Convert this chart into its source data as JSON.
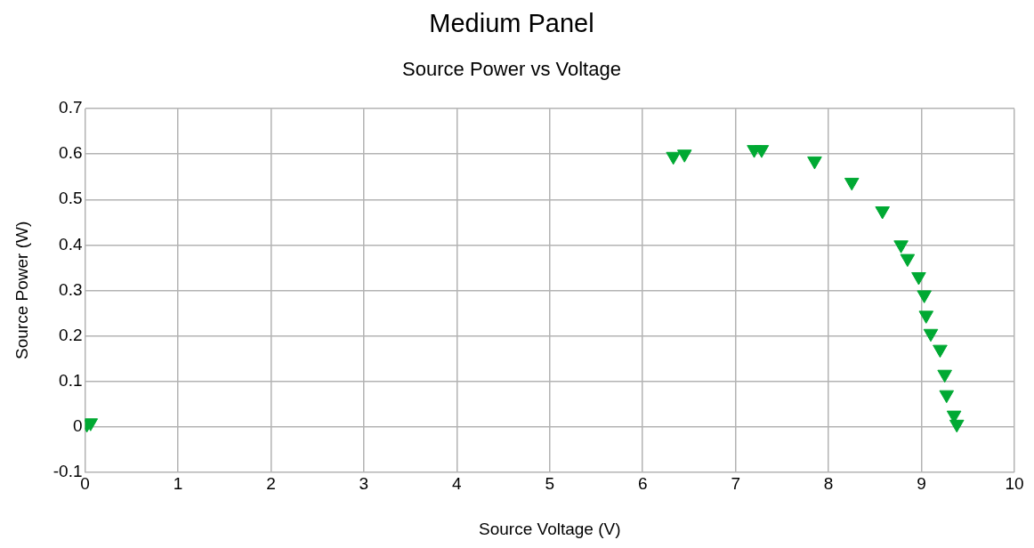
{
  "chart_data": {
    "type": "scatter",
    "title": "Medium Panel",
    "subtitle": "Source Power vs Voltage",
    "xlabel": "Source Voltage (V)",
    "ylabel": "Source Power (W)",
    "series": [
      {
        "color": "#00a933",
        "x": [
          0.02,
          0.06,
          6.33,
          6.45,
          7.2,
          7.28,
          7.85,
          8.25,
          8.58,
          8.78,
          8.85,
          8.97,
          9.03,
          9.05,
          9.1,
          9.2,
          9.25,
          9.27,
          9.35,
          9.38
        ],
        "values": [
          0.005,
          0.008,
          0.595,
          0.6,
          0.61,
          0.61,
          0.585,
          0.538,
          0.475,
          0.4,
          0.37,
          0.33,
          0.29,
          0.245,
          0.205,
          0.17,
          0.115,
          0.07,
          0.025,
          0.005
        ]
      }
    ],
    "xlim": [
      0,
      10
    ],
    "xticks": [
      0,
      1,
      2,
      3,
      4,
      5,
      6,
      7,
      8,
      9,
      10
    ],
    "ylim": [
      -0.1,
      0.7
    ],
    "yticks": [
      -0.1,
      0,
      0.1,
      0.2,
      0.3,
      0.4,
      0.5,
      0.6,
      0.7
    ],
    "grid": true,
    "legend": false,
    "marker": "triangle"
  }
}
